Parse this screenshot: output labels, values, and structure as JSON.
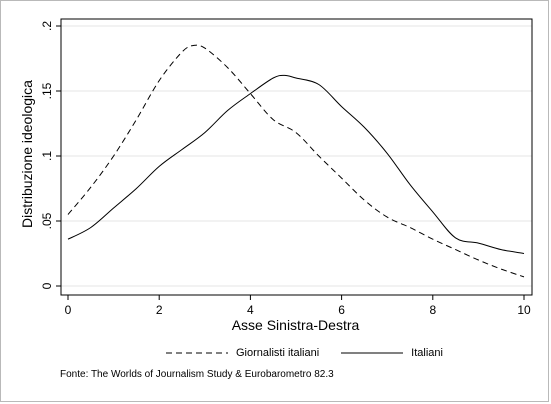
{
  "chart_data": {
    "type": "line",
    "title": "",
    "xlabel": "Asse Sinistra-Destra",
    "ylabel": "Distribuzione ideologica",
    "xlim": [
      0,
      10
    ],
    "ylim": [
      0,
      0.2
    ],
    "x_ticks": [
      0,
      2,
      4,
      6,
      8,
      10
    ],
    "x_tick_labels": [
      "0",
      "2",
      "4",
      "6",
      "8",
      "10"
    ],
    "y_ticks": [
      0,
      0.05,
      0.1,
      0.15,
      0.2
    ],
    "y_tick_labels": [
      "0",
      ".05",
      ".1",
      ".15",
      ".2"
    ],
    "grid": "horizontal",
    "legend_position": "bottom",
    "series": [
      {
        "name": "Giornalisti italiani",
        "style": "dashed",
        "color": "#000000",
        "x": [
          0,
          0.5,
          1,
          1.5,
          2,
          2.5,
          2.75,
          3,
          3.5,
          4,
          4.5,
          5,
          5.5,
          6,
          6.5,
          7,
          7.5,
          8,
          8.5,
          9,
          9.5,
          10
        ],
        "y": [
          0.055,
          0.076,
          0.1,
          0.128,
          0.158,
          0.18,
          0.185,
          0.183,
          0.168,
          0.148,
          0.128,
          0.118,
          0.1,
          0.083,
          0.066,
          0.053,
          0.045,
          0.036,
          0.028,
          0.02,
          0.013,
          0.007
        ]
      },
      {
        "name": "Italiani",
        "style": "solid",
        "color": "#000000",
        "x": [
          0,
          0.5,
          1,
          1.5,
          2,
          2.5,
          3,
          3.5,
          4,
          4.5,
          4.75,
          5,
          5.5,
          6,
          6.5,
          7,
          7.5,
          8,
          8.5,
          9,
          9.5,
          10
        ],
        "y": [
          0.036,
          0.045,
          0.06,
          0.075,
          0.092,
          0.105,
          0.118,
          0.135,
          0.148,
          0.16,
          0.162,
          0.16,
          0.155,
          0.138,
          0.122,
          0.102,
          0.078,
          0.057,
          0.037,
          0.033,
          0.028,
          0.025
        ]
      }
    ]
  },
  "legend": {
    "series_1": "Giornalisti italiani",
    "series_2": "Italiani"
  },
  "source_note": "Fonte: The Worlds of Journalism Study & Eurobarometro 82.3"
}
